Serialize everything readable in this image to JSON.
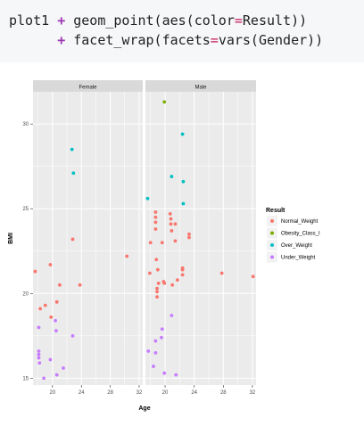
{
  "code": {
    "line1": {
      "obj": "plot1",
      "op": "+",
      "call": "geom_point(aes(color",
      "eq": "=",
      "rest": "Result))"
    },
    "line2": {
      "op": "+",
      "call": "facet_wrap(facets",
      "eq": "=",
      "rest": "vars(Gender))"
    }
  },
  "chart_data": {
    "type": "scatter",
    "xlabel": "Age",
    "ylabel": "BMI",
    "xlim": [
      17.3,
      32.5
    ],
    "ylim": [
      14.6,
      31.9
    ],
    "x_ticks": [
      20,
      24,
      28,
      32
    ],
    "y_ticks": [
      15,
      20,
      25,
      30
    ],
    "grid": true,
    "legend_position": "right",
    "legend_title": "Result",
    "facets": [
      "Female",
      "Male"
    ],
    "series": [
      {
        "name": "Normal_Weight",
        "color": "#F8766D"
      },
      {
        "name": "Obesity_Class_I",
        "color": "#7CAE00"
      },
      {
        "name": "Over_Weight",
        "color": "#00BFC4"
      },
      {
        "name": "Under_Weight",
        "color": "#C77CFF"
      }
    ],
    "points": {
      "Female": [
        {
          "x": 17.6,
          "y": 21.3,
          "g": "Normal_Weight"
        },
        {
          "x": 18.3,
          "y": 19.1,
          "g": "Normal_Weight"
        },
        {
          "x": 19.0,
          "y": 19.3,
          "g": "Normal_Weight"
        },
        {
          "x": 19.7,
          "y": 21.7,
          "g": "Normal_Weight"
        },
        {
          "x": 19.8,
          "y": 18.6,
          "g": "Normal_Weight"
        },
        {
          "x": 20.6,
          "y": 19.5,
          "g": "Normal_Weight"
        },
        {
          "x": 21.0,
          "y": 20.5,
          "g": "Normal_Weight"
        },
        {
          "x": 22.8,
          "y": 23.2,
          "g": "Normal_Weight"
        },
        {
          "x": 23.8,
          "y": 20.5,
          "g": "Normal_Weight"
        },
        {
          "x": 30.3,
          "y": 22.2,
          "g": "Normal_Weight"
        },
        {
          "x": 22.7,
          "y": 28.5,
          "g": "Over_Weight"
        },
        {
          "x": 22.9,
          "y": 27.1,
          "g": "Over_Weight"
        },
        {
          "x": 18.1,
          "y": 18.0,
          "g": "Under_Weight"
        },
        {
          "x": 18.1,
          "y": 16.6,
          "g": "Under_Weight"
        },
        {
          "x": 18.1,
          "y": 16.4,
          "g": "Under_Weight"
        },
        {
          "x": 18.1,
          "y": 16.2,
          "g": "Under_Weight"
        },
        {
          "x": 18.2,
          "y": 15.9,
          "g": "Under_Weight"
        },
        {
          "x": 18.8,
          "y": 15.0,
          "g": "Under_Weight"
        },
        {
          "x": 19.7,
          "y": 16.1,
          "g": "Under_Weight"
        },
        {
          "x": 20.4,
          "y": 18.4,
          "g": "Under_Weight"
        },
        {
          "x": 20.5,
          "y": 17.8,
          "g": "Under_Weight"
        },
        {
          "x": 20.6,
          "y": 15.2,
          "g": "Under_Weight"
        },
        {
          "x": 21.5,
          "y": 15.6,
          "g": "Under_Weight"
        },
        {
          "x": 22.8,
          "y": 17.5,
          "g": "Under_Weight"
        }
      ],
      "Male": [
        {
          "x": 18.0,
          "y": 23.0,
          "g": "Normal_Weight"
        },
        {
          "x": 17.9,
          "y": 21.2,
          "g": "Normal_Weight"
        },
        {
          "x": 18.7,
          "y": 24.8,
          "g": "Normal_Weight"
        },
        {
          "x": 18.7,
          "y": 24.5,
          "g": "Normal_Weight"
        },
        {
          "x": 18.7,
          "y": 24.2,
          "g": "Normal_Weight"
        },
        {
          "x": 18.7,
          "y": 23.8,
          "g": "Normal_Weight"
        },
        {
          "x": 18.8,
          "y": 22.0,
          "g": "Normal_Weight"
        },
        {
          "x": 19.0,
          "y": 21.4,
          "g": "Normal_Weight"
        },
        {
          "x": 19.1,
          "y": 20.6,
          "g": "Normal_Weight"
        },
        {
          "x": 18.9,
          "y": 20.3,
          "g": "Normal_Weight"
        },
        {
          "x": 18.9,
          "y": 20.1,
          "g": "Normal_Weight"
        },
        {
          "x": 18.9,
          "y": 19.8,
          "g": "Normal_Weight"
        },
        {
          "x": 19.6,
          "y": 23.0,
          "g": "Normal_Weight"
        },
        {
          "x": 19.8,
          "y": 20.7,
          "g": "Normal_Weight"
        },
        {
          "x": 19.9,
          "y": 20.6,
          "g": "Normal_Weight"
        },
        {
          "x": 20.7,
          "y": 24.7,
          "g": "Normal_Weight"
        },
        {
          "x": 20.8,
          "y": 24.4,
          "g": "Normal_Weight"
        },
        {
          "x": 20.8,
          "y": 24.1,
          "g": "Normal_Weight"
        },
        {
          "x": 20.9,
          "y": 23.7,
          "g": "Normal_Weight"
        },
        {
          "x": 21.0,
          "y": 20.5,
          "g": "Normal_Weight"
        },
        {
          "x": 21.4,
          "y": 24.1,
          "g": "Normal_Weight"
        },
        {
          "x": 21.4,
          "y": 23.1,
          "g": "Normal_Weight"
        },
        {
          "x": 21.7,
          "y": 20.8,
          "g": "Normal_Weight"
        },
        {
          "x": 22.4,
          "y": 21.1,
          "g": "Normal_Weight"
        },
        {
          "x": 22.4,
          "y": 21.5,
          "g": "Normal_Weight"
        },
        {
          "x": 22.4,
          "y": 21.4,
          "g": "Normal_Weight"
        },
        {
          "x": 23.3,
          "y": 23.5,
          "g": "Normal_Weight"
        },
        {
          "x": 23.3,
          "y": 23.3,
          "g": "Normal_Weight"
        },
        {
          "x": 27.8,
          "y": 21.2,
          "g": "Normal_Weight"
        },
        {
          "x": 32.1,
          "y": 21.0,
          "g": "Normal_Weight"
        },
        {
          "x": 19.9,
          "y": 31.3,
          "g": "Obesity_Class_I"
        },
        {
          "x": 17.6,
          "y": 25.6,
          "g": "Over_Weight"
        },
        {
          "x": 20.9,
          "y": 26.9,
          "g": "Over_Weight"
        },
        {
          "x": 22.4,
          "y": 29.4,
          "g": "Over_Weight"
        },
        {
          "x": 22.5,
          "y": 26.6,
          "g": "Over_Weight"
        },
        {
          "x": 22.5,
          "y": 25.3,
          "g": "Over_Weight"
        },
        {
          "x": 17.7,
          "y": 16.6,
          "g": "Under_Weight"
        },
        {
          "x": 18.4,
          "y": 15.7,
          "g": "Under_Weight"
        },
        {
          "x": 18.7,
          "y": 17.2,
          "g": "Under_Weight"
        },
        {
          "x": 18.7,
          "y": 16.5,
          "g": "Under_Weight"
        },
        {
          "x": 19.5,
          "y": 17.4,
          "g": "Under_Weight"
        },
        {
          "x": 19.6,
          "y": 17.9,
          "g": "Under_Weight"
        },
        {
          "x": 19.9,
          "y": 15.3,
          "g": "Under_Weight"
        },
        {
          "x": 20.9,
          "y": 18.7,
          "g": "Under_Weight"
        },
        {
          "x": 21.5,
          "y": 15.2,
          "g": "Under_Weight"
        }
      ]
    }
  }
}
